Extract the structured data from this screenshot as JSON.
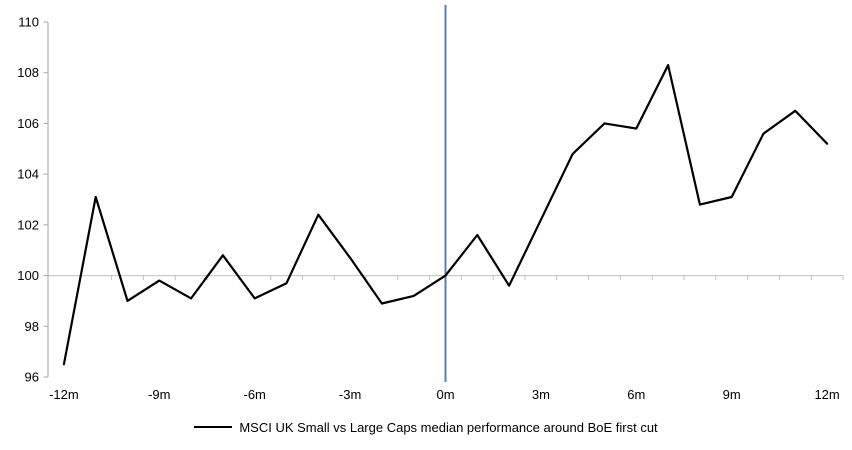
{
  "chart": {
    "legend_label": "MSCI UK Small vs Large Caps median performance around BoE first cut"
  },
  "chart_data": {
    "type": "line",
    "title": "",
    "xlabel": "",
    "ylabel": "",
    "x": [
      -12,
      -11,
      -10,
      -9,
      -8,
      -7,
      -6,
      -5,
      -4,
      -3,
      -2,
      -1,
      0,
      1,
      2,
      3,
      4,
      5,
      6,
      7,
      8,
      9,
      10,
      11,
      12
    ],
    "series": [
      {
        "name": "MSCI UK Small vs Large Caps median performance around BoE first cut",
        "values": [
          96.5,
          103.1,
          99.0,
          99.8,
          99.1,
          100.8,
          99.1,
          99.7,
          102.4,
          100.7,
          98.9,
          99.2,
          100.0,
          101.6,
          99.6,
          102.2,
          104.8,
          106.0,
          105.8,
          108.3,
          102.8,
          103.1,
          105.6,
          106.5,
          105.2
        ]
      }
    ],
    "x_tick_label_positions": [
      -12,
      -9,
      -6,
      -3,
      0,
      3,
      6,
      9,
      12
    ],
    "x_tick_labels": [
      "-12m",
      "-9m",
      "-6m",
      "-3m",
      "0m",
      "3m",
      "6m",
      "9m",
      "12m"
    ],
    "y_ticks": [
      96,
      98,
      100,
      102,
      104,
      106,
      108,
      110
    ],
    "ylim": [
      96,
      110
    ],
    "xlim": [
      -12.5,
      12.5
    ],
    "baseline_value": 100,
    "event_line_x": 0,
    "legend_position": "bottom",
    "grid": "baseline-only",
    "colors": {
      "series": "#000000",
      "event_line": "#4f81bd",
      "baseline_axis": "#bfbfbf",
      "y_axis": "#a6a6a6",
      "text": "#000000"
    }
  }
}
